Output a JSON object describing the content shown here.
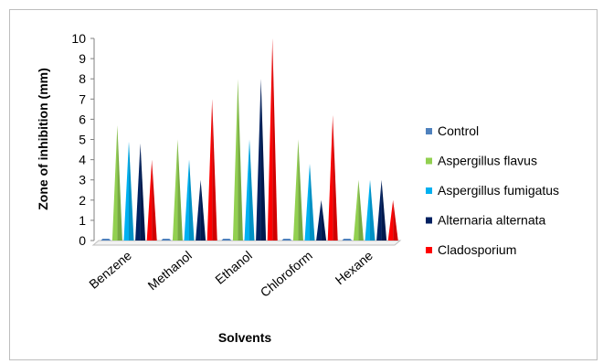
{
  "chart_data": {
    "type": "bar",
    "categories": [
      "Benzene",
      "Methanol",
      "Ethanol",
      "Chloroform",
      "Hexane"
    ],
    "series": [
      {
        "name": "Control",
        "values": [
          0,
          0,
          0,
          0,
          0
        ],
        "color": "#4f81bd"
      },
      {
        "name": "Aspergillus flavus",
        "values": [
          5.7,
          5,
          8,
          5,
          3
        ],
        "color": "#92d050"
      },
      {
        "name": "Aspergillus fumigatus",
        "values": [
          4.9,
          4,
          5,
          3.8,
          3
        ],
        "color": "#00b0f0"
      },
      {
        "name": "Alternaria alternata",
        "values": [
          4.8,
          3,
          8,
          2,
          3
        ],
        "color": "#002060"
      },
      {
        "name": "Cladosporium",
        "values": [
          4,
          7,
          10,
          6.2,
          2
        ],
        "color": "#ff0000"
      }
    ],
    "xlabel": "Solvents",
    "ylabel": "Zone of inhibition (mm)",
    "ylim": [
      0,
      10
    ],
    "yticks": [
      0,
      1,
      2,
      3,
      4,
      5,
      6,
      7,
      8,
      9,
      10
    ],
    "grid": false,
    "legend_position": "right"
  }
}
